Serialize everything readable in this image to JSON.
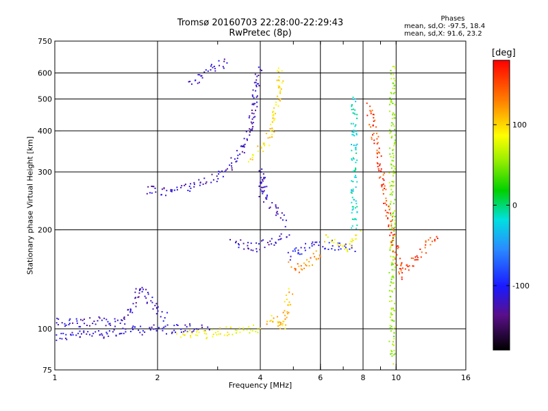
{
  "chart_data": {
    "type": "scatter",
    "title": "Tromsø 20160703 22:28:00-22:29:43",
    "subtitle": "RwPretec (8p)",
    "xlabel": "Frequency [MHz]",
    "ylabel": "Stationary phase Virtual Height [km]",
    "x_scale": "log",
    "y_scale": "log",
    "xlim": [
      1,
      16
    ],
    "ylim": [
      75,
      750
    ],
    "x_ticks": [
      1,
      2,
      4,
      6,
      8,
      10,
      16
    ],
    "x_tick_labels": [
      "1",
      "2",
      "4",
      "6",
      "8",
      "10",
      "16"
    ],
    "y_ticks": [
      75,
      100,
      200,
      300,
      400,
      500,
      600,
      750
    ],
    "y_tick_labels": [
      "75",
      "100",
      "200",
      "300",
      "400",
      "500",
      "600",
      "750"
    ],
    "grid": true,
    "phase_header": "Phases",
    "phase_lines": [
      "mean, sd,O: -97.5, 18.4",
      "mean, sd,X:  91.6, 23.2"
    ],
    "colorbar": {
      "title": "[deg]",
      "min": -180,
      "max": 180,
      "ticks": [
        100,
        0,
        -100
      ],
      "tick_labels": [
        "100",
        "0",
        "-100"
      ]
    },
    "traces": [
      {
        "points": [
          [
            1.0,
            95
          ],
          [
            1.15,
            96
          ],
          [
            1.3,
            97
          ],
          [
            1.5,
            98
          ],
          [
            1.7,
            99
          ],
          [
            1.9,
            100
          ],
          [
            2.2,
            100
          ],
          [
            2.5,
            101
          ],
          [
            2.8,
            101
          ]
        ],
        "phase": -115
      },
      {
        "points": [
          [
            1.0,
            105
          ],
          [
            1.15,
            104
          ],
          [
            1.3,
            106
          ],
          [
            1.45,
            104
          ],
          [
            1.6,
            108
          ],
          [
            1.7,
            120
          ],
          [
            1.78,
            135
          ],
          [
            1.85,
            125
          ],
          [
            2.0,
            115
          ],
          [
            2.1,
            108
          ]
        ],
        "phase": -120
      },
      {
        "points": [
          [
            2.3,
            98
          ],
          [
            2.5,
            97
          ],
          [
            2.7,
            96
          ],
          [
            2.9,
            97
          ],
          [
            3.1,
            98
          ],
          [
            3.4,
            99
          ],
          [
            3.7,
            100
          ],
          [
            4.0,
            101
          ]
        ],
        "phase": 95
      },
      {
        "points": [
          [
            1.85,
            265
          ],
          [
            2.1,
            262
          ],
          [
            2.4,
            270
          ],
          [
            2.7,
            280
          ],
          [
            3.0,
            295
          ],
          [
            3.2,
            310
          ],
          [
            3.4,
            330
          ],
          [
            3.55,
            360
          ],
          [
            3.7,
            400
          ],
          [
            3.8,
            460
          ],
          [
            3.85,
            520
          ],
          [
            3.9,
            580
          ],
          [
            3.95,
            630
          ]
        ],
        "phase": -120
      },
      {
        "points": [
          [
            2.5,
            550
          ],
          [
            2.7,
            590
          ],
          [
            2.9,
            630
          ],
          [
            3.2,
            645
          ]
        ],
        "phase": -118
      },
      {
        "points": [
          [
            3.75,
            330
          ],
          [
            3.9,
            345
          ],
          [
            4.1,
            360
          ],
          [
            4.25,
            390
          ],
          [
            4.35,
            430
          ],
          [
            4.45,
            480
          ],
          [
            4.55,
            560
          ],
          [
            4.55,
            630
          ]
        ],
        "phase": 110
      },
      {
        "points": [
          [
            3.95,
            262
          ],
          [
            4.0,
            280
          ],
          [
            4.05,
            300
          ],
          [
            4.1,
            250
          ],
          [
            4.3,
            240
          ],
          [
            4.5,
            225
          ],
          [
            4.7,
            210
          ]
        ],
        "phase": -120
      },
      {
        "points": [
          [
            3.3,
            185
          ],
          [
            3.6,
            180
          ],
          [
            3.9,
            178
          ],
          [
            4.2,
            182
          ],
          [
            4.5,
            190
          ],
          [
            4.8,
            195
          ]
        ],
        "phase": -118
      },
      {
        "points": [
          [
            4.8,
            165
          ],
          [
            5.0,
            170
          ],
          [
            5.3,
            175
          ],
          [
            5.6,
            180
          ],
          [
            6.0,
            182
          ],
          [
            6.5,
            180
          ],
          [
            7.0,
            178
          ],
          [
            7.5,
            176
          ]
        ],
        "phase": -105
      },
      {
        "points": [
          [
            4.9,
            158
          ],
          [
            5.2,
            150
          ],
          [
            5.5,
            160
          ],
          [
            5.8,
            168
          ],
          [
            6.1,
            172
          ]
        ],
        "phase": 140
      },
      {
        "points": [
          [
            6.2,
            190
          ],
          [
            6.6,
            185
          ],
          [
            7.2,
            175
          ],
          [
            7.8,
            195
          ]
        ],
        "phase": 100
      },
      {
        "points": [
          [
            4.15,
            105
          ],
          [
            4.4,
            110
          ],
          [
            4.6,
            100
          ],
          [
            4.9,
            130
          ]
        ],
        "phase": 120
      },
      {
        "points": [
          [
            7.5,
            510
          ],
          [
            7.5,
            420
          ],
          [
            7.5,
            360
          ],
          [
            7.5,
            200
          ]
        ],
        "phase": -20
      },
      {
        "points": [
          [
            9.7,
            630
          ],
          [
            9.7,
            520
          ],
          [
            9.7,
            170
          ],
          [
            9.7,
            90
          ],
          [
            9.7,
            80
          ]
        ],
        "phase": 60
      },
      {
        "points": [
          [
            8.3,
            480
          ],
          [
            9.4,
            235
          ],
          [
            10.3,
            145
          ],
          [
            13.0,
            195
          ]
        ],
        "phase": 160
      }
    ]
  }
}
